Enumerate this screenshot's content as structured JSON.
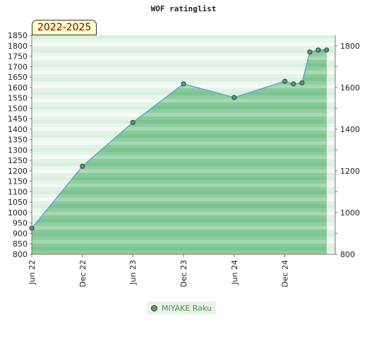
{
  "chart_data": {
    "type": "area",
    "title": "WOF ratinglist",
    "period": "2022-2025",
    "left_ylim": [
      800,
      1850
    ],
    "left_yticks": [
      800,
      850,
      900,
      950,
      1000,
      1050,
      1100,
      1150,
      1200,
      1250,
      1300,
      1350,
      1400,
      1450,
      1500,
      1550,
      1600,
      1650,
      1700,
      1750,
      1800,
      1850
    ],
    "right_yticks": [
      800,
      1000,
      1200,
      1400,
      1600,
      1800
    ],
    "x_range": [
      "2022-06-01",
      "2025-06-01"
    ],
    "x_ticks": [
      {
        "date": "2022-06-01",
        "label": "Jun 22"
      },
      {
        "date": "2022-12-01",
        "label": "Dec 22"
      },
      {
        "date": "2023-06-01",
        "label": "Jun 23"
      },
      {
        "date": "2023-12-01",
        "label": "Dec 23"
      },
      {
        "date": "2024-06-01",
        "label": "Jun 24"
      },
      {
        "date": "2024-12-01",
        "label": "Dec 24"
      }
    ],
    "series": [
      {
        "name": "MIYAKE Raku",
        "color": "#4da36a",
        "line_color": "#5b9bd5",
        "points": [
          {
            "x": "2022-06-01",
            "y": 925
          },
          {
            "x": "2022-12-01",
            "y": 1222
          },
          {
            "x": "2023-06-01",
            "y": 1432
          },
          {
            "x": "2023-12-01",
            "y": 1617
          },
          {
            "x": "2024-06-01",
            "y": 1552
          },
          {
            "x": "2024-12-01",
            "y": 1630
          },
          {
            "x": "2025-01-01",
            "y": 1617
          },
          {
            "x": "2025-02-01",
            "y": 1622
          },
          {
            "x": "2025-03-01",
            "y": 1770
          },
          {
            "x": "2025-04-01",
            "y": 1780
          },
          {
            "x": "2025-05-01",
            "y": 1780
          }
        ]
      }
    ],
    "legend_position": "bottom-center",
    "grid": true
  }
}
